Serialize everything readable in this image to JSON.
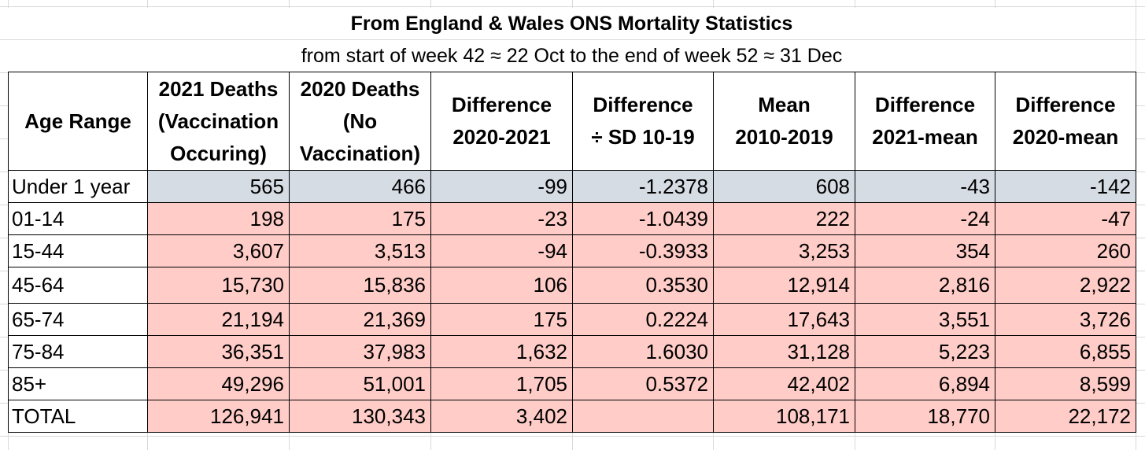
{
  "title": "From England & Wales ONS Mortality Statistics",
  "subtitle": "from start of week 42 ≈ 22 Oct to the end of week 52 ≈ 31 Dec",
  "colors": {
    "under1_fill": "#D6DCE4",
    "row_fill": "#FFCCC7"
  },
  "headers": [
    [
      "Age Range"
    ],
    [
      "2021 Deaths",
      "(Vaccination",
      "Occuring)"
    ],
    [
      "2020 Deaths",
      "(No",
      "Vaccination)"
    ],
    [
      "Difference",
      "2020-2021"
    ],
    [
      "Difference",
      "÷  SD 10-19"
    ],
    [
      "Mean",
      "2010-2019"
    ],
    [
      "Difference",
      "2021-mean"
    ],
    [
      "Difference",
      "2020-mean"
    ]
  ],
  "rows": [
    [
      "Under 1 year",
      "565",
      "466",
      "-99",
      "-1.2378",
      "608",
      "-43",
      "-142"
    ],
    [
      "01-14",
      "198",
      "175",
      "-23",
      "-1.0439",
      "222",
      "-24",
      "-47"
    ],
    [
      "15-44",
      "3,607",
      "3,513",
      "-94",
      "-0.3933",
      "3,253",
      "354",
      "260"
    ],
    [
      "45-64",
      "15,730",
      "15,836",
      "106",
      "0.3530",
      "12,914",
      "2,816",
      "2,922"
    ],
    [
      "65-74",
      "21,194",
      "21,369",
      "175",
      "0.2224",
      "17,643",
      "3,551",
      "3,726"
    ],
    [
      "75-84",
      "36,351",
      "37,983",
      "1,632",
      "1.6030",
      "31,128",
      "5,223",
      "6,855"
    ],
    [
      "85+",
      "49,296",
      "51,001",
      "1,705",
      "0.5372",
      "42,402",
      "6,894",
      "8,599"
    ],
    [
      "TOTAL",
      "126,941",
      "130,343",
      "3,402",
      "",
      "108,171",
      "18,770",
      "22,172"
    ]
  ]
}
